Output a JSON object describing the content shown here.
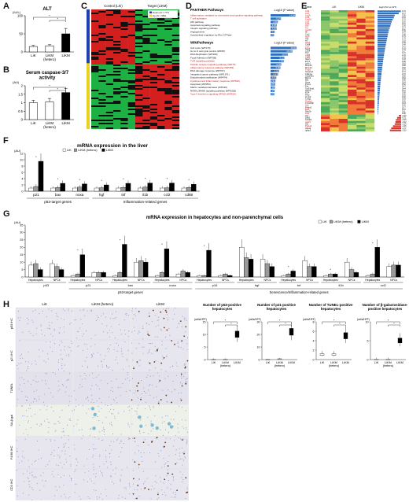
{
  "panel_labels": {
    "A": "A",
    "B": "B",
    "C": "C",
    "D": "D",
    "E": "E",
    "F": "F",
    "G": "G",
    "H": "H"
  },
  "panelA": {
    "title": "ALT",
    "unit": "(IU/L)",
    "ylim": [
      0,
      100
    ],
    "ticks": [
      "0",
      "50",
      "100"
    ],
    "categories": [
      "LiK",
      "LiKM\n(hetero)",
      "LiKM"
    ],
    "values": [
      15,
      17,
      50
    ],
    "errors": [
      3,
      3,
      15
    ]
  },
  "panelB": {
    "title": "Serum caspase-3/7\nactivity",
    "unit": "(AU)",
    "ylim": [
      0,
      2
    ],
    "ticks": [
      "0",
      "0.5",
      "1",
      "1.5",
      "2"
    ],
    "categories": [
      "LiK",
      "LiKM\n(hetero)",
      "LiKM"
    ],
    "values": [
      1.0,
      1.05,
      1.6
    ],
    "errors": [
      0.15,
      0.2,
      0.25
    ]
  },
  "panelC": {
    "headers": [
      "Control (LiK)",
      "Target (LiKM)"
    ],
    "legend": [
      "Down (N = 777)",
      "Up (N = 950)"
    ],
    "colors": {
      "up": "#d41f1f",
      "down": "#1db043",
      "dark": "#111111"
    }
  },
  "panelD": {
    "panther_title": "PANTHER Pathways",
    "wiki_title": "WikiPathways",
    "pvalue_label": "-Log10 (P value)",
    "panther": [
      {
        "name": "Inflammation mediated by chemokine and cytokine signaling pathway",
        "v": 14.84,
        "red": true
      },
      {
        "name": "T cell activation",
        "v": 6.24,
        "red": true
      },
      {
        "name": "p53 pathway",
        "v": 4.36,
        "red": false
      },
      {
        "name": "Apoptosis signaling pathway",
        "v": 3.65,
        "red": false
      },
      {
        "name": "Integrin signaling pathway",
        "v": 3.6,
        "red": false
      },
      {
        "name": "Angiogenesis",
        "v": 2.43,
        "red": false
      },
      {
        "name": "Cytoskeletal regulation by Rho GTPase",
        "v": 2.05,
        "red": false
      }
    ],
    "wiki": [
      {
        "name": "Cell cycle (WP179)",
        "v": 15.6,
        "red": false
      },
      {
        "name": "G1 to S cell cycle control (WP45)",
        "v": 13.06,
        "red": false
      },
      {
        "name": "DNA Replication (WP466)",
        "v": 10.33,
        "red": false
      },
      {
        "name": "Focal Adhesion (WP306)",
        "v": 8.22,
        "red": false
      },
      {
        "name": "TCR signaling pathway",
        "v": 7.85,
        "red": true
      },
      {
        "name": "Toll-like receptor signaling pathway (WP75)",
        "v": 6.35,
        "red": true
      },
      {
        "name": "Inflammatory response pathway (WP453)",
        "v": 5.88,
        "red": true
      },
      {
        "name": "DNA damage response (WP707)",
        "v": 5.05,
        "red": false
      },
      {
        "name": "Integrated cancer pathway (WP1971)",
        "v": 4.43,
        "red": false
      },
      {
        "name": "Endochondral ossification (WP474)",
        "v": 3.43,
        "red": false
      },
      {
        "name": "Cytokines and inflammatory response (WP530)",
        "v": 2.91,
        "red": true
      },
      {
        "name": "Apoptosis (WP254)",
        "v": 2.84,
        "red": false
      },
      {
        "name": "Matrix metalloproteinases (WP129)",
        "v": 2.58,
        "red": false
      },
      {
        "name": "RANKL/RANK signaling pathway (WP2018)",
        "v": 2.34,
        "red": false
      },
      {
        "name": "Type II interferon signaling (IFNG) (WP619)",
        "v": 2.2,
        "red": true
      }
    ]
  },
  "panelE": {
    "headers": [
      "Gene",
      "LiK",
      "LiKM",
      "log2 (KO vs WT)"
    ],
    "rows": [
      {
        "g": "Ccl2",
        "v": "4.15",
        "red": true
      },
      {
        "g": "Ccl7",
        "v": "3.77",
        "red": true
      },
      {
        "g": "Cxcl9",
        "v": "3.05",
        "red": true
      },
      {
        "g": "Ccl5",
        "v": "2.91",
        "red": true
      },
      {
        "g": "Cxcl10",
        "v": "2.70",
        "red": true
      },
      {
        "g": "Ccl3",
        "v": "2.52",
        "red": true
      },
      {
        "g": "Ccl4",
        "v": "2.41",
        "red": true
      },
      {
        "g": "Il1b",
        "v": "2.30",
        "red": true
      },
      {
        "g": "Tnf",
        "v": "2.17",
        "red": true
      },
      {
        "g": "Cxcl16",
        "v": "2.02",
        "red": true
      },
      {
        "g": "Il6",
        "v": "1.94",
        "red": false
      },
      {
        "g": "Ccr2",
        "v": "1.86",
        "red": false
      },
      {
        "g": "Ccr5",
        "v": "1.79",
        "red": true
      },
      {
        "g": "Il18",
        "v": "1.70",
        "red": false
      },
      {
        "g": "Irf7",
        "v": "1.63",
        "red": false
      },
      {
        "g": "Stat1",
        "v": "1.55",
        "red": true
      },
      {
        "g": "Cd68",
        "v": "1.48",
        "red": false
      },
      {
        "g": "Lcn2",
        "v": "1.41",
        "red": true
      },
      {
        "g": "Saa3",
        "v": "1.34",
        "red": false
      },
      {
        "g": "Cd14",
        "v": "1.27",
        "red": false
      },
      {
        "g": "Tlr2",
        "v": "1.21",
        "red": false
      },
      {
        "g": "Cd86",
        "v": "1.15",
        "red": true
      },
      {
        "g": "Cd80",
        "v": "1.09",
        "red": false
      },
      {
        "g": "Itgam",
        "v": "1.03",
        "red": false
      },
      {
        "g": "Emr1",
        "v": "0.98",
        "red": false
      },
      {
        "g": "Ly6c1",
        "v": "0.93",
        "red": false
      },
      {
        "g": "Mmp12",
        "v": "0.88",
        "red": false
      },
      {
        "g": "Mmp13",
        "v": "0.83",
        "red": false
      },
      {
        "g": "Timp1",
        "v": "0.79",
        "red": true
      },
      {
        "g": "Serpine1",
        "v": "0.74",
        "red": false
      },
      {
        "g": "Cdkn1a",
        "v": "0.70",
        "red": false
      },
      {
        "g": "Gadd45a",
        "v": "0.66",
        "red": false
      },
      {
        "g": "Mdm2",
        "v": "0.62",
        "red": false
      },
      {
        "g": "Bax",
        "v": "0.58",
        "red": false
      },
      {
        "g": "Noxa",
        "v": "0.54",
        "red": false
      },
      {
        "g": "Puma",
        "v": "0.50",
        "red": false
      },
      {
        "g": "Fas",
        "v": "0.47",
        "red": false
      },
      {
        "g": "Trp53inp1",
        "v": "0.44",
        "red": false
      },
      {
        "g": "Sesn2",
        "v": "0.41",
        "red": false
      },
      {
        "g": "Ei24",
        "v": "0.38",
        "red": false
      },
      {
        "g": "Perp",
        "v": "0.35",
        "red": false
      },
      {
        "g": "Zmat3",
        "v": "0.32",
        "red": false
      },
      {
        "g": "Ccng1",
        "v": "0.29",
        "red": false
      },
      {
        "g": "Pmaip1",
        "v": "0.26",
        "red": true
      },
      {
        "g": "Tnfrsf10b",
        "v": "0.23",
        "red": false
      },
      {
        "g": "Aen",
        "v": "0.20",
        "red": true
      },
      {
        "g": "Phlda3",
        "v": "0.17",
        "red": false
      },
      {
        "g": "Btg2",
        "v": "0.14",
        "red": true
      },
      {
        "g": "Rrm2b",
        "v": "0.11",
        "red": false
      },
      {
        "g": "Polk",
        "v": "0.08",
        "red": true
      },
      {
        "g": "Xpc",
        "v": "-0.40",
        "red": false
      },
      {
        "g": "Ddb2",
        "v": "-0.71",
        "red": false
      },
      {
        "g": "Tp53i3",
        "v": "-0.93",
        "red": false
      },
      {
        "g": "Apaf1",
        "v": "-1.02",
        "red": true
      },
      {
        "g": "Sfn",
        "v": "-1.14",
        "red": false
      },
      {
        "g": "Ptp4a3",
        "v": "-1.46",
        "red": true
      },
      {
        "g": "Abca1",
        "v": "-1.77",
        "red": false
      },
      {
        "g": "Igfbp3",
        "v": "-2.00",
        "red": false
      }
    ]
  },
  "panelF": {
    "title": "mRNA expression in the liver",
    "unit": "(AU)",
    "ylim": [
      0,
      12
    ],
    "ticks": [
      "0",
      "2",
      "4",
      "6",
      "8",
      "10",
      "12"
    ],
    "legend": [
      "LiK",
      "LiKM (hetero)",
      "LiKM"
    ],
    "genes": [
      "p21",
      "bax",
      "noxa",
      "hgf",
      "tnf",
      "il1b",
      "ccl2",
      "cd68"
    ],
    "groups": [
      {
        "label": "p53-target genes",
        "span": [
          0,
          2
        ]
      },
      {
        "label": "Inflammation-related genes",
        "span": [
          3,
          7
        ]
      }
    ],
    "series": [
      {
        "name": "LiK",
        "values": [
          1,
          1,
          1,
          1,
          1,
          1,
          1,
          1
        ]
      },
      {
        "name": "LiKM (hetero)",
        "values": [
          1.5,
          1.2,
          1.3,
          1.1,
          1.2,
          1.3,
          1.1,
          1.2
        ]
      },
      {
        "name": "LiKM",
        "values": [
          9.5,
          2.5,
          2.3,
          2.0,
          2.5,
          2.6,
          2.6,
          2.2
        ]
      }
    ]
  },
  "panelG": {
    "title": "mRNA expression in hepatocytes and non-parenchymal cells",
    "unit": "(AU)",
    "ylim": [
      0,
      35
    ],
    "ticks": [
      "0",
      "5",
      "10",
      "15",
      "20",
      "25",
      "30",
      "35"
    ],
    "legend": [
      "LiK",
      "LiKM (hetero)",
      "LiKM"
    ],
    "cells": [
      "Hepatocytes",
      "NPCs"
    ],
    "genes": [
      "p53",
      "p21",
      "bax",
      "noxa",
      "p16",
      "hgf",
      "tnf",
      "il1b",
      "ccl2"
    ],
    "groups": [
      {
        "label": "p53-target genes",
        "span": [
          1,
          3
        ]
      },
      {
        "label": "Senescence/Inflammation-related genes",
        "span": [
          4,
          8
        ]
      }
    ],
    "series": [
      {
        "name": "LiK",
        "values": [
          8,
          9,
          1,
          3,
          1,
          10,
          1,
          2,
          1,
          1,
          20,
          12,
          1,
          11,
          1,
          10,
          1,
          7
        ]
      },
      {
        "name": "LiKM (hetero)",
        "values": [
          9,
          7,
          2,
          3,
          3,
          11,
          3,
          4,
          1,
          2,
          13,
          9,
          2,
          7,
          2,
          5,
          2,
          8
        ]
      },
      {
        "name": "LiKM",
        "values": [
          5,
          5,
          15,
          3,
          22,
          10,
          19,
          3,
          18,
          1,
          12,
          7,
          4,
          7,
          2,
          3,
          20,
          8
        ]
      }
    ]
  },
  "panelH": {
    "columns": [
      "LiK",
      "LiKM (hetero)",
      "LiKM"
    ],
    "rows": [
      "p53 IHC",
      "p21 IHC",
      "TUNEL",
      "SA-β-gal",
      "F4/80 IHC",
      "CD3 IHC"
    ],
    "charts": [
      {
        "title": "Number of p53-positive\nhepatocytes",
        "unit": "(cells/HPF)",
        "ylim": [
          0,
          15
        ],
        "ticks": [
          "0",
          "5",
          "10",
          "15"
        ],
        "values": [
          0,
          0,
          10
        ]
      },
      {
        "title": "Number of p21-positive\nhepatocytes",
        "unit": "(cells/HPF)",
        "ylim": [
          0,
          30
        ],
        "ticks": [
          "0",
          "10",
          "20",
          "30"
        ],
        "values": [
          0,
          0.5,
          22
        ]
      },
      {
        "title": "Number of TUNEL-positive\nhepatocytes",
        "unit": "(cells/HPF)",
        "ylim": [
          0,
          8
        ],
        "ticks": [
          "0",
          "2",
          "4",
          "6",
          "8"
        ],
        "values": [
          1,
          1,
          5
        ]
      },
      {
        "title": "Number of β-galactosidase-\npositive hepatocytes",
        "unit": "(cells/HPF)",
        "ylim": [
          0,
          10
        ],
        "ticks": [
          "0",
          "5",
          "10"
        ],
        "values": [
          0,
          0,
          5
        ]
      }
    ],
    "categories": [
      "LiK",
      "LiKM\n(hetero)",
      "LiKM"
    ]
  }
}
